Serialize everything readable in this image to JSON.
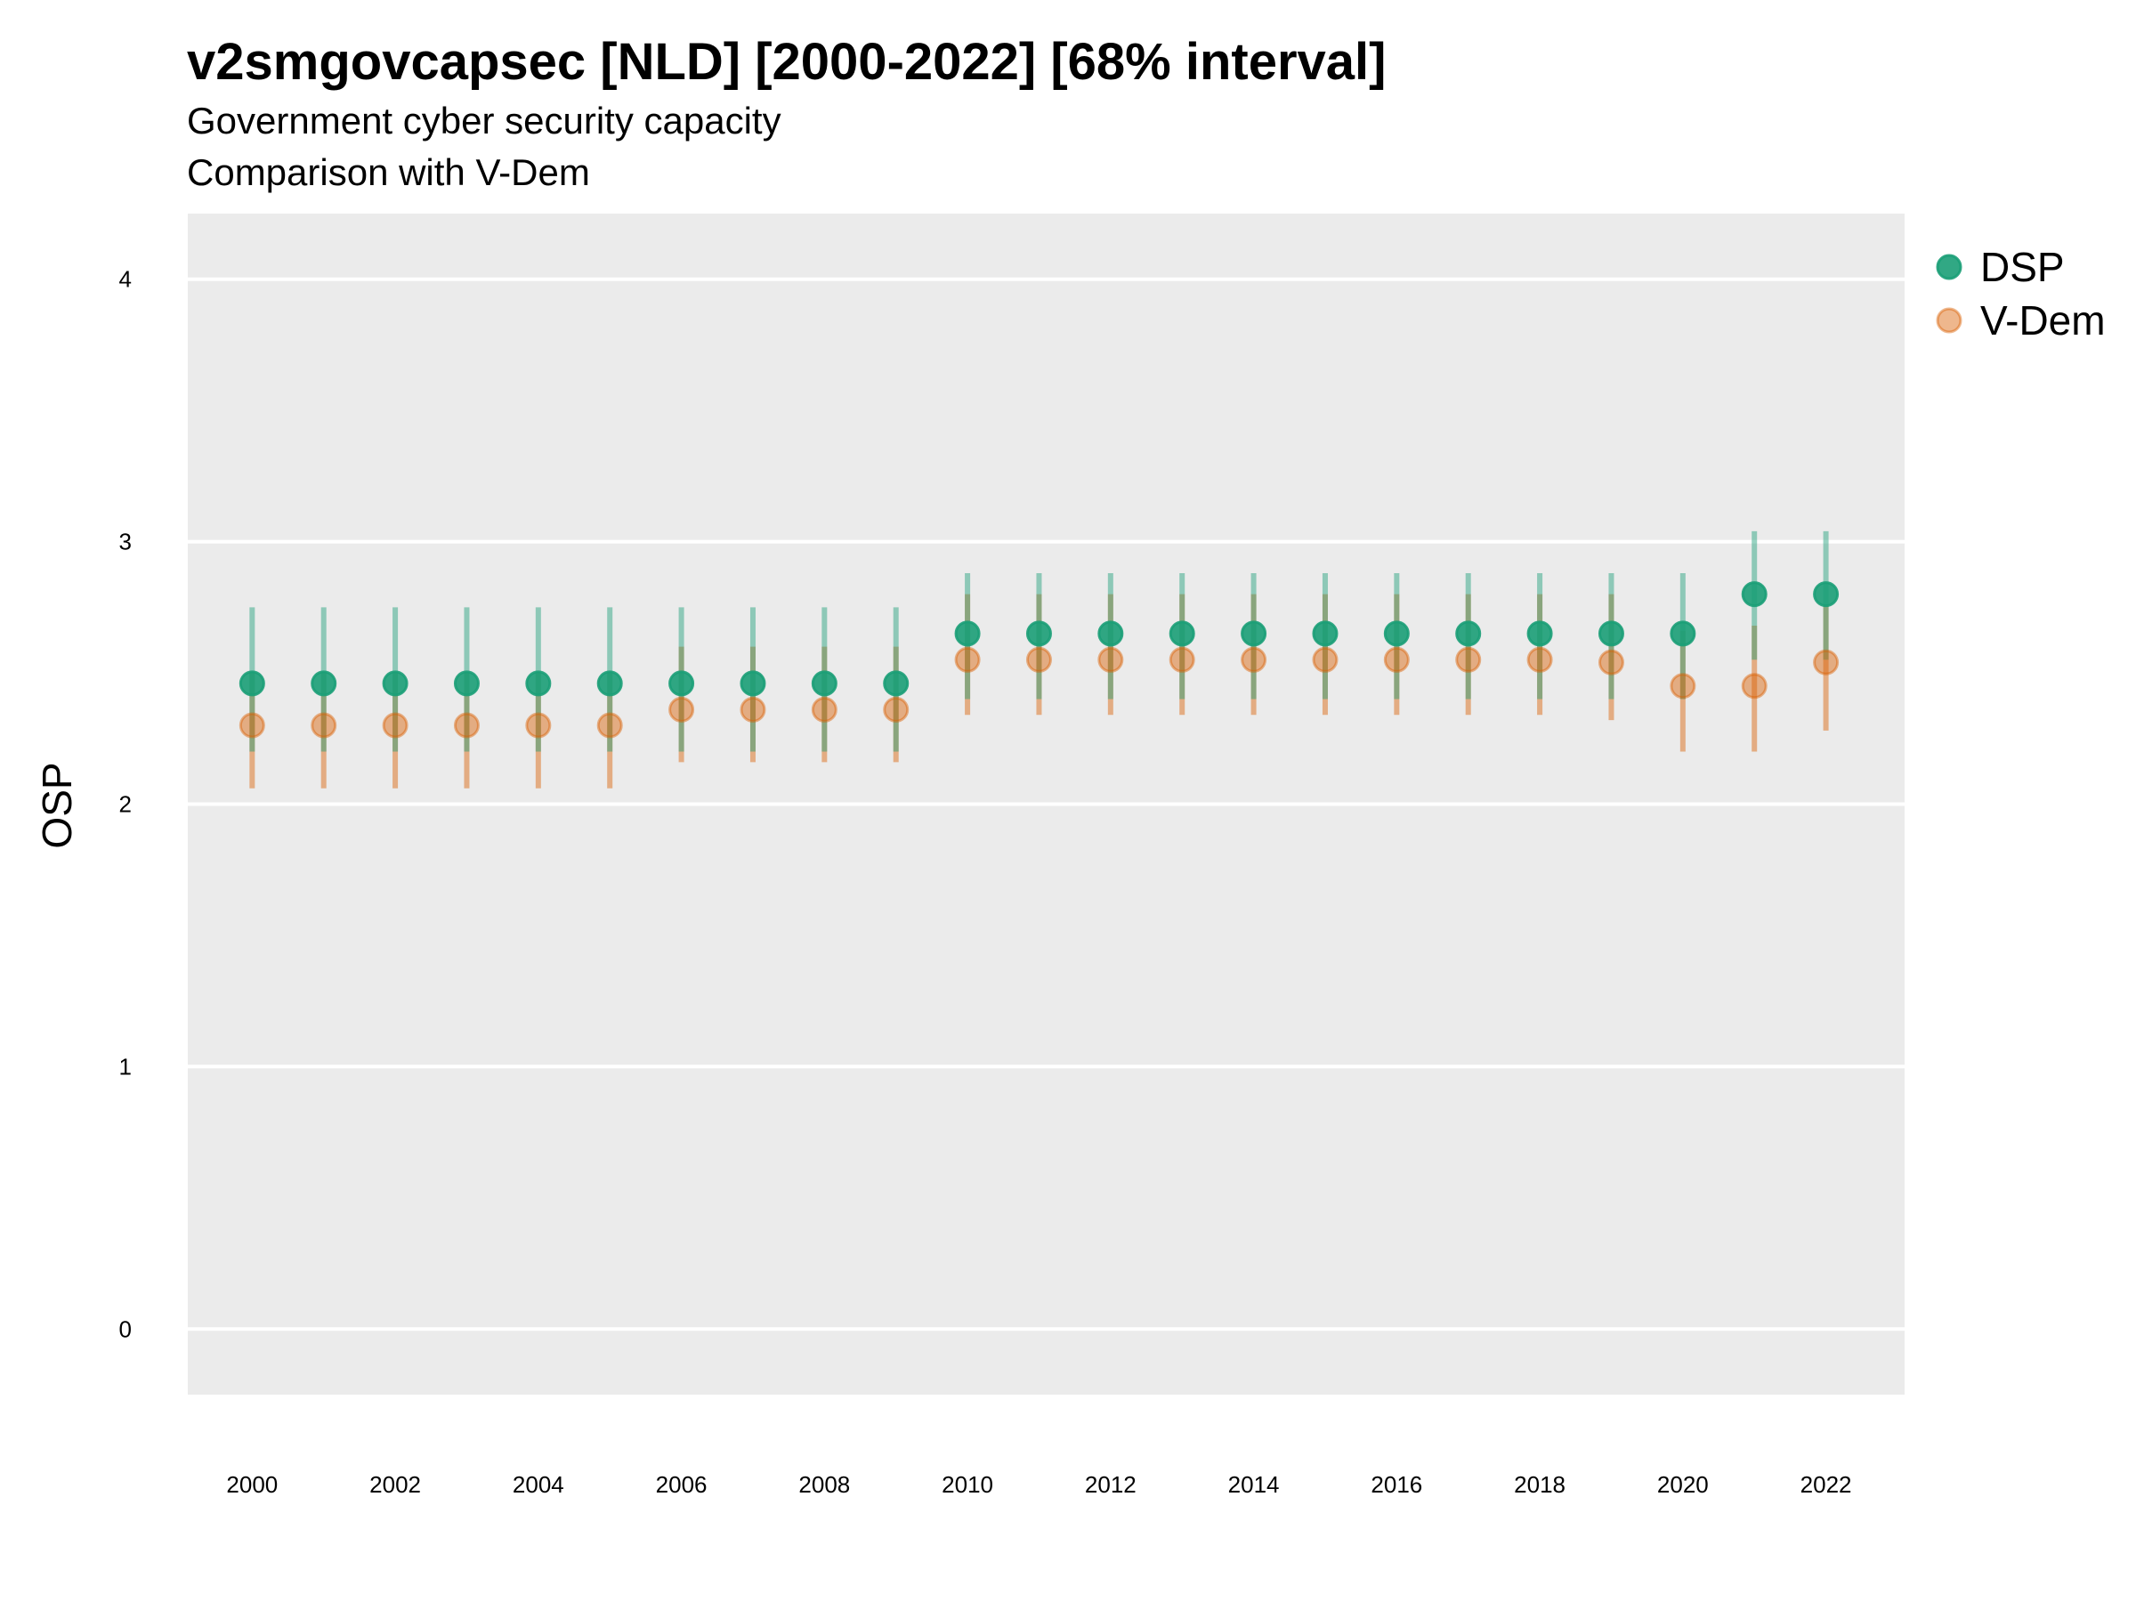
{
  "header": {
    "title": "v2smgovcapsec [NLD] [2000-2022] [68% interval]",
    "subtitle": "Government cyber security capacity",
    "caption": "Comparison with V-Dem"
  },
  "chart_data": {
    "type": "scatter",
    "title": "v2smgovcapsec [NLD] [2000-2022] [68% interval]",
    "subtitle": "Government cyber security capacity",
    "caption": "Comparison with V-Dem",
    "xlabel": "",
    "ylabel": "OSP",
    "ylim": [
      -0.25,
      4.25
    ],
    "xlim": [
      1999.1,
      2023.1
    ],
    "yticks": [
      0,
      1,
      2,
      3,
      4
    ],
    "xticks": [
      2000,
      2002,
      2004,
      2006,
      2008,
      2010,
      2012,
      2014,
      2016,
      2018,
      2020,
      2022
    ],
    "grid": true,
    "legend_position": "right",
    "x": [
      2000,
      2001,
      2002,
      2003,
      2004,
      2005,
      2006,
      2007,
      2008,
      2009,
      2010,
      2011,
      2012,
      2013,
      2014,
      2015,
      2016,
      2017,
      2018,
      2019,
      2020,
      2021,
      2022
    ],
    "series": [
      {
        "name": "DSP",
        "color": "#1b9e77",
        "values": [
          2.46,
          2.46,
          2.46,
          2.46,
          2.46,
          2.46,
          2.46,
          2.46,
          2.46,
          2.46,
          2.65,
          2.65,
          2.65,
          2.65,
          2.65,
          2.65,
          2.65,
          2.65,
          2.65,
          2.65,
          2.65,
          2.8,
          2.8
        ],
        "lower": [
          2.2,
          2.2,
          2.2,
          2.2,
          2.2,
          2.2,
          2.2,
          2.2,
          2.2,
          2.2,
          2.4,
          2.4,
          2.4,
          2.4,
          2.4,
          2.4,
          2.4,
          2.4,
          2.4,
          2.4,
          2.4,
          2.55,
          2.55
        ],
        "upper": [
          2.75,
          2.75,
          2.75,
          2.75,
          2.75,
          2.75,
          2.75,
          2.75,
          2.75,
          2.75,
          2.88,
          2.88,
          2.88,
          2.88,
          2.88,
          2.88,
          2.88,
          2.88,
          2.88,
          2.88,
          2.88,
          3.04,
          3.04
        ]
      },
      {
        "name": "V-Dem",
        "color": "#d95f02",
        "values": [
          2.3,
          2.3,
          2.3,
          2.3,
          2.3,
          2.3,
          2.36,
          2.36,
          2.36,
          2.36,
          2.55,
          2.55,
          2.55,
          2.55,
          2.55,
          2.55,
          2.55,
          2.55,
          2.55,
          2.54,
          2.45,
          2.45,
          2.54
        ],
        "lower": [
          2.06,
          2.06,
          2.06,
          2.06,
          2.06,
          2.06,
          2.16,
          2.16,
          2.16,
          2.16,
          2.34,
          2.34,
          2.34,
          2.34,
          2.34,
          2.34,
          2.34,
          2.34,
          2.34,
          2.32,
          2.2,
          2.2,
          2.28
        ],
        "upper": [
          2.5,
          2.5,
          2.5,
          2.5,
          2.5,
          2.5,
          2.6,
          2.6,
          2.6,
          2.6,
          2.8,
          2.8,
          2.8,
          2.8,
          2.8,
          2.8,
          2.8,
          2.8,
          2.8,
          2.8,
          2.66,
          2.68,
          2.76
        ]
      }
    ]
  }
}
